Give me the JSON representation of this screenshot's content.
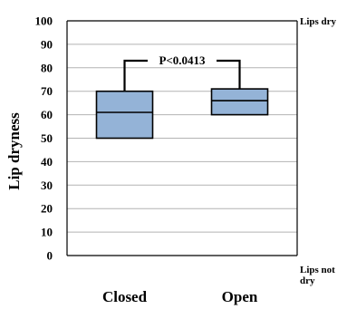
{
  "chart_data": {
    "type": "box",
    "ylabel": "Lip dryness",
    "ylim": [
      0,
      100
    ],
    "yticks": [
      0,
      10,
      20,
      30,
      40,
      50,
      60,
      70,
      80,
      90,
      100
    ],
    "grid": true,
    "categories": [
      "Closed",
      "Open"
    ],
    "boxes": [
      {
        "category": "Closed",
        "q1": 50,
        "median": 61,
        "q3": 70
      },
      {
        "category": "Open",
        "q1": 60,
        "median": 66,
        "q3": 71
      }
    ],
    "annotation": {
      "text": "P<0.0413"
    },
    "right_labels": {
      "top": "Lips dry",
      "bottom_line1": "Lips not",
      "bottom_line2": "dry"
    },
    "colors": {
      "box_fill": "#94b3d7",
      "box_stroke": "#000000",
      "grid": "#b3b3b3"
    }
  }
}
